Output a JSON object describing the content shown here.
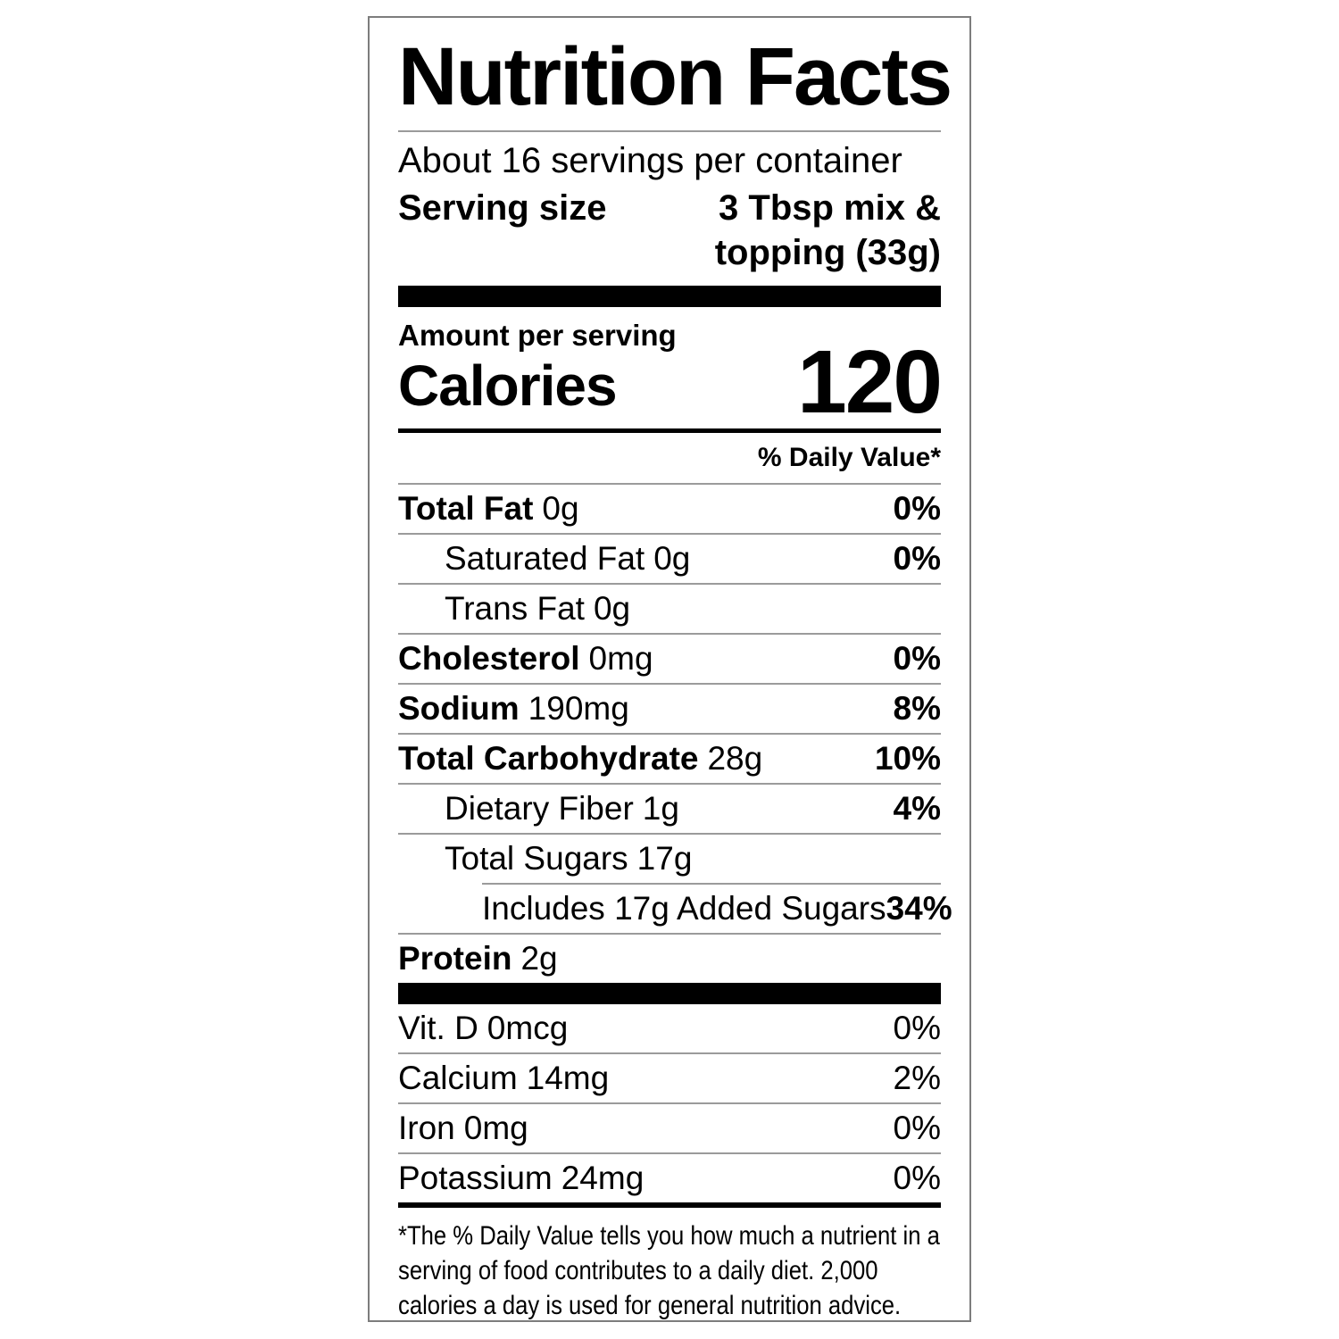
{
  "label": {
    "title": "Nutrition Facts",
    "servings_per_container": "About 16 servings per container",
    "serving_size_label": "Serving size",
    "serving_size_value": "3 Tbsp mix & topping (33g)",
    "amount_per_serving": "Amount per serving",
    "calories_label": "Calories",
    "calories_value": "120",
    "daily_value_header": "% Daily Value*",
    "nutrients": [
      {
        "name": "Total Fat",
        "amount": "0g",
        "dv": "0%"
      },
      {
        "name": "Saturated Fat",
        "amount": "0g",
        "dv": "0%"
      },
      {
        "name": "Trans Fat",
        "amount": "0g",
        "dv": ""
      },
      {
        "name": "Cholesterol",
        "amount": "0mg",
        "dv": "0%"
      },
      {
        "name": "Sodium",
        "amount": "190mg",
        "dv": "8%"
      },
      {
        "name": "Total Carbohydrate",
        "amount": "28g",
        "dv": "10%"
      },
      {
        "name": "Dietary Fiber",
        "amount": "1g",
        "dv": "4%"
      },
      {
        "name": "Total Sugars",
        "amount": "17g",
        "dv": ""
      },
      {
        "name": "Includes 17g Added Sugars",
        "amount": "",
        "dv": "34%"
      },
      {
        "name": "Protein",
        "amount": "2g",
        "dv": ""
      }
    ],
    "micronutrients": [
      {
        "name": "Vit. D",
        "amount": "0mcg",
        "dv": "0%"
      },
      {
        "name": "Calcium",
        "amount": "14mg",
        "dv": "2%"
      },
      {
        "name": "Iron",
        "amount": "0mg",
        "dv": "0%"
      },
      {
        "name": "Potassium",
        "amount": "24mg",
        "dv": "0%"
      }
    ],
    "footnote": "*The % Daily Value tells you how much a nutrient in a serving of food contributes to a daily diet. 2,000 calories a day is used for general nutrition advice."
  },
  "colors": {
    "text": "#000000",
    "divider": "#9b9b9b",
    "bar": "#000000",
    "border": "#7d7d7d",
    "background": "#ffffff"
  }
}
